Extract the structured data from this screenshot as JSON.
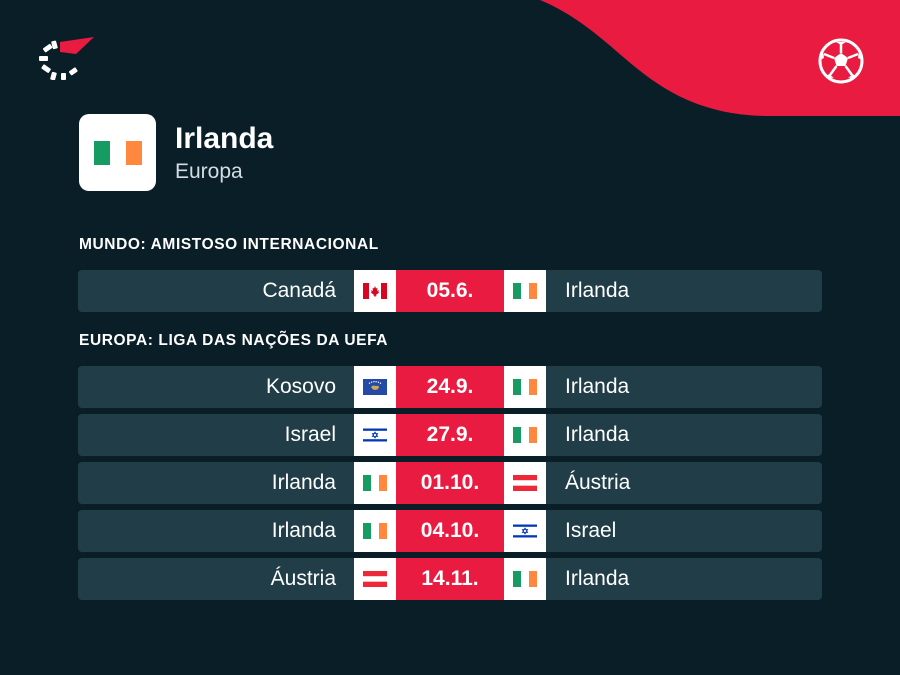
{
  "team": {
    "name": "Irlanda",
    "region": "Europa",
    "flag": "ireland"
  },
  "icons": {
    "logo": "brand-logo-icon",
    "ball": "football-icon"
  },
  "colors": {
    "background": "#0a1e28",
    "row": "#203d48",
    "accent": "#ea1b40"
  },
  "sections": [
    {
      "title": "MUNDO: AMISTOSO INTERNACIONAL",
      "matches": [
        {
          "home": "Canadá",
          "home_flag": "canada",
          "date": "05.6.",
          "away": "Irlanda",
          "away_flag": "ireland"
        }
      ]
    },
    {
      "title": "EUROPA: LIGA DAS NAÇÕES DA UEFA",
      "matches": [
        {
          "home": "Kosovo",
          "home_flag": "kosovo",
          "date": "24.9.",
          "away": "Irlanda",
          "away_flag": "ireland"
        },
        {
          "home": "Israel",
          "home_flag": "israel",
          "date": "27.9.",
          "away": "Irlanda",
          "away_flag": "ireland"
        },
        {
          "home": "Irlanda",
          "home_flag": "ireland",
          "date": "01.10.",
          "away": "Áustria",
          "away_flag": "austria"
        },
        {
          "home": "Irlanda",
          "home_flag": "ireland",
          "date": "04.10.",
          "away": "Israel",
          "away_flag": "israel"
        },
        {
          "home": "Áustria",
          "home_flag": "austria",
          "date": "14.11.",
          "away": "Irlanda",
          "away_flag": "ireland"
        }
      ]
    }
  ]
}
